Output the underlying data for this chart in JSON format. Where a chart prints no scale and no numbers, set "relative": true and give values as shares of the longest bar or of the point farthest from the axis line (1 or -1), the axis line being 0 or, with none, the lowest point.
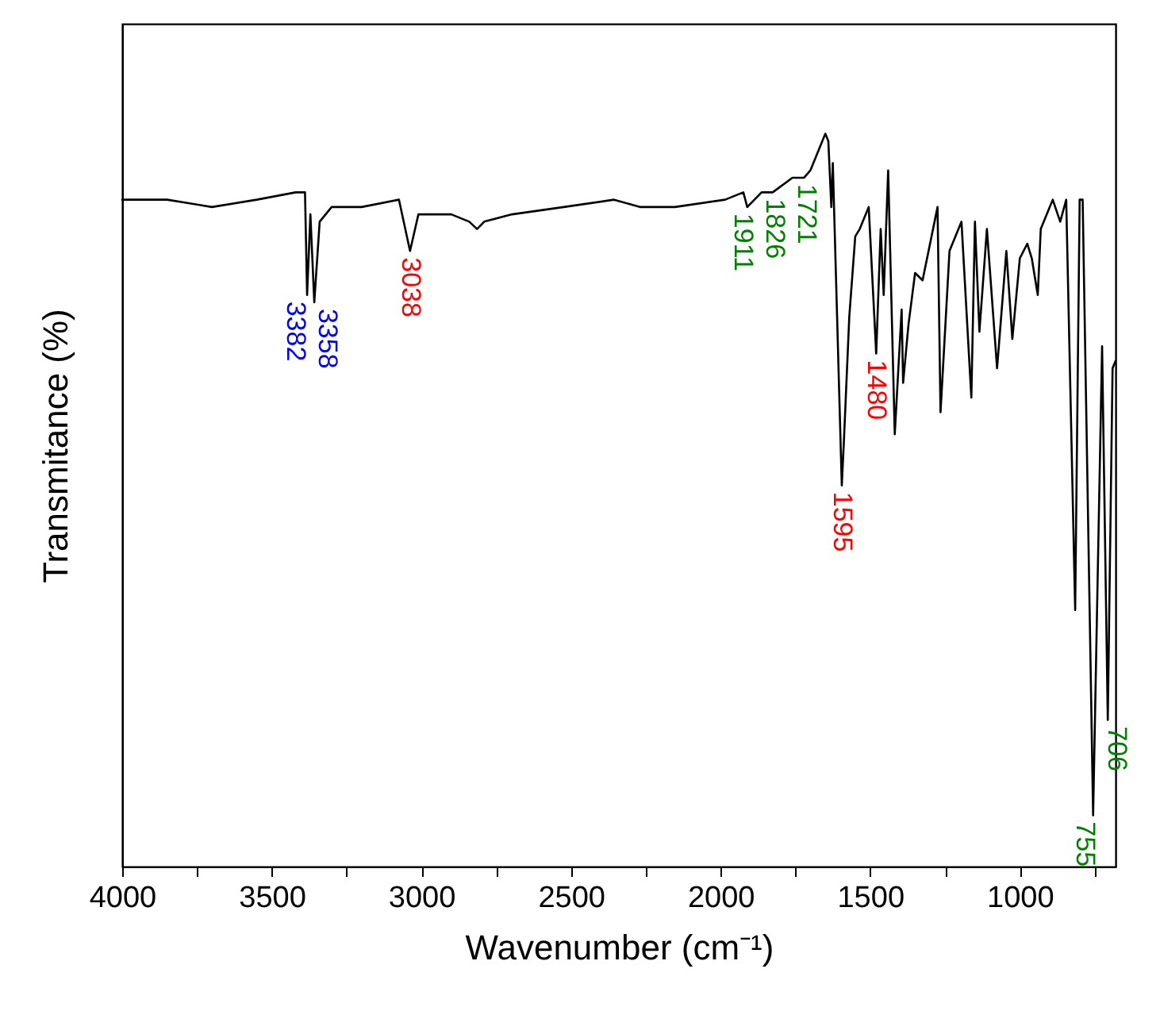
{
  "chart_data": {
    "type": "line",
    "relative": true,
    "xlabel": "Wavenumber (cm⁻¹)",
    "ylabel": "Transmitance (%)",
    "xlim": [
      4000,
      680
    ],
    "xticks": [
      4000,
      {
        "value": 3750,
        "label": null
      },
      3500,
      {
        "value": 3250,
        "label": null
      },
      3000,
      {
        "value": 2750,
        "label": null
      },
      2500,
      {
        "value": 2250,
        "label": null
      },
      2000,
      {
        "value": 1750,
        "label": null
      },
      1500,
      {
        "value": 1250,
        "label": null
      },
      1000,
      {
        "value": 750,
        "label": null
      }
    ],
    "marker": "none",
    "grid": false,
    "x": [
      4000,
      3850,
      3700,
      3550,
      3420,
      3389,
      3382,
      3371,
      3358,
      3340,
      3300,
      3200,
      3075,
      3038,
      3010,
      2900,
      2840,
      2814,
      2790,
      2697,
      2524,
      2356,
      2270,
      2153,
      1985,
      1924,
      1911,
      1863,
      1826,
      1760,
      1721,
      1700,
      1650,
      1640,
      1630,
      1625,
      1595,
      1588,
      1570,
      1550,
      1535,
      1505,
      1480,
      1465,
      1455,
      1440,
      1418,
      1395,
      1390,
      1372,
      1350,
      1325,
      1275,
      1265,
      1235,
      1195,
      1162,
      1150,
      1135,
      1110,
      1076,
      1045,
      1025,
      1000,
      975,
      960,
      940,
      930,
      890,
      865,
      845,
      815,
      800,
      790,
      755,
      725,
      706,
      690,
      680
    ],
    "series": [
      {
        "color": "#000000",
        "values": [
          0.91,
          0.91,
          0.9,
          0.91,
          0.92,
          0.92,
          0.78,
          0.89,
          0.77,
          0.88,
          0.9,
          0.9,
          0.91,
          0.84,
          0.89,
          0.89,
          0.88,
          0.87,
          0.88,
          0.89,
          0.9,
          0.91,
          0.9,
          0.9,
          0.91,
          0.92,
          0.9,
          0.92,
          0.92,
          0.94,
          0.94,
          0.95,
          1.0,
          0.99,
          0.9,
          0.96,
          0.52,
          0.58,
          0.75,
          0.86,
          0.87,
          0.9,
          0.7,
          0.87,
          0.78,
          0.95,
          0.59,
          0.76,
          0.66,
          0.74,
          0.81,
          0.8,
          0.9,
          0.62,
          0.84,
          0.88,
          0.64,
          0.88,
          0.73,
          0.87,
          0.68,
          0.84,
          0.72,
          0.83,
          0.85,
          0.83,
          0.78,
          0.87,
          0.91,
          0.88,
          0.91,
          0.35,
          0.91,
          0.91,
          0.07,
          0.71,
          0.2,
          0.68,
          0.69
        ]
      }
    ],
    "annotations": [
      {
        "text": "3382",
        "x": 3382,
        "y": 0.78
      },
      {
        "text": "3358",
        "x": 3358,
        "y": 0.77
      },
      {
        "text": "3038",
        "x": 3038,
        "y": 0.84
      },
      {
        "text": "1911",
        "x": 1911,
        "y": 0.9
      },
      {
        "text": "1826",
        "x": 1826,
        "y": 0.92
      },
      {
        "text": "1721",
        "x": 1721,
        "y": 0.94
      },
      {
        "text": "1595",
        "x": 1595,
        "y": 0.52
      },
      {
        "text": "1480",
        "x": 1480,
        "y": 0.7
      },
      {
        "text": "755",
        "x": 755,
        "y": 0.07
      },
      {
        "text": "706",
        "x": 706,
        "y": 0.2
      }
    ]
  }
}
